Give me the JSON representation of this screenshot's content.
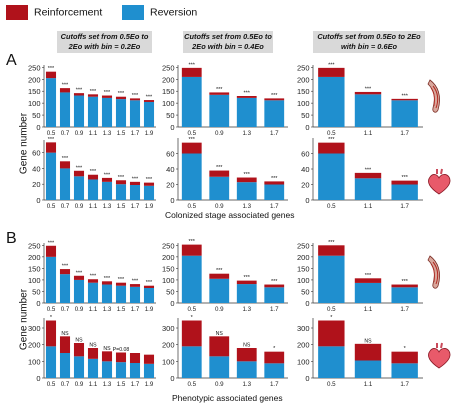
{
  "legend": {
    "items": [
      {
        "label": "Reinforcement",
        "color": "#b0121b"
      },
      {
        "label": "Reversion",
        "color": "#1f8fcf"
      }
    ]
  },
  "column_headers": [
    "Cutoffs set from 0.5Eo to 2Eo with bin = 0.2Eo",
    "Cutoffs set from 0.5Eo to 2Eo with bin = 0.4Eo",
    "Cutoffs set from 0.5Eo to 2Eo with bin = 0.6Eo"
  ],
  "panel_letters": [
    "A",
    "B"
  ],
  "y_axis_label": "Gene number",
  "x_axis_labels": [
    "Colonized stage associated genes",
    "Phenotypic associated genes"
  ],
  "icons": [
    "muscle-icon",
    "heart-icon"
  ],
  "colors": {
    "reinforcement": "#b0121b",
    "reversion": "#1f8fcf",
    "header_bg": "#d9d9d9"
  },
  "chart_data": [
    {
      "panel": "A",
      "row": 1,
      "col": 1,
      "type": "bar",
      "stacked": true,
      "categories": [
        "0.5",
        "0.7",
        "0.9",
        "1.1",
        "1.3",
        "1.5",
        "1.7",
        "1.9"
      ],
      "series": [
        {
          "name": "Reversion",
          "values": [
            205,
            145,
            132,
            127,
            122,
            117,
            112,
            105
          ]
        },
        {
          "name": "Reinforcement",
          "values": [
            27,
            18,
            10,
            10,
            10,
            10,
            8,
            8
          ]
        }
      ],
      "annotations": [
        "***",
        "***",
        "***",
        "***",
        "***",
        "***",
        "***",
        "***"
      ],
      "yticks": [
        0,
        50,
        100,
        150,
        200,
        250
      ],
      "ylim": [
        0,
        260
      ]
    },
    {
      "panel": "A",
      "row": 1,
      "col": 2,
      "type": "bar",
      "stacked": true,
      "categories": [
        "0.5",
        "0.9",
        "1.3",
        "1.7"
      ],
      "series": [
        {
          "name": "Reversion",
          "values": [
            210,
            135,
            122,
            112
          ]
        },
        {
          "name": "Reinforcement",
          "values": [
            38,
            10,
            8,
            8
          ]
        }
      ],
      "annotations": [
        "***",
        "***",
        "***",
        "***"
      ],
      "yticks": [
        0,
        50,
        100,
        150,
        200,
        250
      ],
      "ylim": [
        0,
        260
      ]
    },
    {
      "panel": "A",
      "row": 1,
      "col": 3,
      "type": "bar",
      "stacked": true,
      "categories": [
        "0.5",
        "1.1",
        "1.7"
      ],
      "series": [
        {
          "name": "Reversion",
          "values": [
            210,
            137,
            112
          ]
        },
        {
          "name": "Reinforcement",
          "values": [
            38,
            10,
            6
          ]
        }
      ],
      "annotations": [
        "***",
        "***",
        "***"
      ],
      "yticks": [
        0,
        50,
        100,
        150,
        200,
        250
      ],
      "ylim": [
        0,
        260
      ]
    },
    {
      "panel": "A",
      "row": 2,
      "col": 1,
      "type": "bar",
      "stacked": true,
      "categories": [
        "0.5",
        "0.7",
        "0.9",
        "1.1",
        "1.3",
        "1.5",
        "1.7",
        "1.9"
      ],
      "series": [
        {
          "name": "Reversion",
          "values": [
            60,
            40,
            30,
            26,
            23,
            20,
            19,
            18
          ]
        },
        {
          "name": "Reinforcement",
          "values": [
            13,
            9,
            7,
            6,
            5,
            5,
            4,
            4
          ]
        }
      ],
      "annotations": [
        "***",
        "***",
        "***",
        "***",
        "***",
        "***",
        "***",
        "***"
      ],
      "yticks": [
        0,
        20,
        40,
        60
      ],
      "ylim": [
        0,
        76
      ]
    },
    {
      "panel": "A",
      "row": 2,
      "col": 2,
      "type": "bar",
      "stacked": true,
      "categories": [
        "0.5",
        "0.9",
        "1.3",
        "1.7"
      ],
      "series": [
        {
          "name": "Reversion",
          "values": [
            60,
            30,
            23,
            20
          ]
        },
        {
          "name": "Reinforcement",
          "values": [
            14,
            8,
            6,
            4
          ]
        }
      ],
      "annotations": [
        "***",
        "***",
        "***",
        "***"
      ],
      "yticks": [
        0,
        20,
        40,
        60
      ],
      "ylim": [
        0,
        80
      ]
    },
    {
      "panel": "A",
      "row": 2,
      "col": 3,
      "type": "bar",
      "stacked": true,
      "categories": [
        "0.5",
        "1.1",
        "1.7"
      ],
      "series": [
        {
          "name": "Reversion",
          "values": [
            60,
            28,
            20
          ]
        },
        {
          "name": "Reinforcement",
          "values": [
            14,
            7,
            5
          ]
        }
      ],
      "annotations": [
        "***",
        "***",
        "***"
      ],
      "yticks": [
        0,
        20,
        40,
        60
      ],
      "ylim": [
        0,
        80
      ]
    },
    {
      "panel": "B",
      "row": 1,
      "col": 1,
      "type": "bar",
      "stacked": true,
      "categories": [
        "0.5",
        "0.7",
        "0.9",
        "1.1",
        "1.3",
        "1.5",
        "1.7",
        "1.9"
      ],
      "series": [
        {
          "name": "Reversion",
          "values": [
            200,
            125,
            100,
            88,
            80,
            75,
            70,
            65
          ]
        },
        {
          "name": "Reinforcement",
          "values": [
            48,
            22,
            18,
            15,
            14,
            13,
            12,
            10
          ]
        }
      ],
      "annotations": [
        "***",
        "***",
        "***",
        "***",
        "***",
        "***",
        "***",
        "***"
      ],
      "yticks": [
        0,
        50,
        100,
        150,
        200,
        250
      ],
      "ylim": [
        0,
        260
      ]
    },
    {
      "panel": "B",
      "row": 1,
      "col": 2,
      "type": "bar",
      "stacked": true,
      "categories": [
        "0.5",
        "0.9",
        "1.3",
        "1.7"
      ],
      "series": [
        {
          "name": "Reversion",
          "values": [
            205,
            105,
            82,
            68
          ]
        },
        {
          "name": "Reinforcement",
          "values": [
            48,
            22,
            15,
            12
          ]
        }
      ],
      "annotations": [
        "***",
        "***",
        "***",
        "***"
      ],
      "yticks": [
        0,
        50,
        100,
        150,
        200,
        250
      ],
      "ylim": [
        0,
        260
      ]
    },
    {
      "panel": "B",
      "row": 1,
      "col": 3,
      "type": "bar",
      "stacked": true,
      "categories": [
        "0.5",
        "1.1",
        "1.7"
      ],
      "series": [
        {
          "name": "Reversion",
          "values": [
            205,
            87,
            68
          ]
        },
        {
          "name": "Reinforcement",
          "values": [
            45,
            20,
            12
          ]
        }
      ],
      "annotations": [
        "***",
        "***",
        "***"
      ],
      "yticks": [
        0,
        50,
        100,
        150,
        200,
        250
      ],
      "ylim": [
        0,
        260
      ]
    },
    {
      "panel": "B",
      "row": 2,
      "col": 1,
      "type": "bar",
      "stacked": true,
      "categories": [
        "0.5",
        "0.7",
        "0.9",
        "1.1",
        "1.3",
        "1.5",
        "1.7",
        "1.9"
      ],
      "series": [
        {
          "name": "Reversion",
          "values": [
            190,
            150,
            130,
            115,
            100,
            95,
            90,
            85
          ]
        },
        {
          "name": "Reinforcement",
          "values": [
            155,
            100,
            80,
            65,
            60,
            58,
            60,
            55
          ]
        }
      ],
      "annotations": [
        "*",
        "NS",
        "NS",
        "NS",
        "NS",
        "P=0.08",
        "",
        ""
      ],
      "yticks": [
        0,
        100,
        200,
        300
      ],
      "ylim": [
        0,
        360
      ]
    },
    {
      "panel": "B",
      "row": 2,
      "col": 2,
      "type": "bar",
      "stacked": true,
      "categories": [
        "0.5",
        "0.9",
        "1.3",
        "1.7"
      ],
      "series": [
        {
          "name": "Reversion",
          "values": [
            190,
            130,
            100,
            88
          ]
        },
        {
          "name": "Reinforcement",
          "values": [
            155,
            120,
            80,
            70
          ]
        }
      ],
      "annotations": [
        "*",
        "NS",
        "NS",
        "*"
      ],
      "yticks": [
        0,
        100,
        200,
        300
      ],
      "ylim": [
        0,
        360
      ]
    },
    {
      "panel": "B",
      "row": 2,
      "col": 3,
      "type": "bar",
      "stacked": true,
      "categories": [
        "0.5",
        "1.1",
        "1.7"
      ],
      "series": [
        {
          "name": "Reversion",
          "values": [
            190,
            105,
            88
          ]
        },
        {
          "name": "Reinforcement",
          "values": [
            155,
            100,
            70
          ]
        }
      ],
      "annotations": [
        "*",
        "NS",
        "*"
      ],
      "yticks": [
        0,
        100,
        200,
        300
      ],
      "ylim": [
        0,
        360
      ]
    }
  ]
}
